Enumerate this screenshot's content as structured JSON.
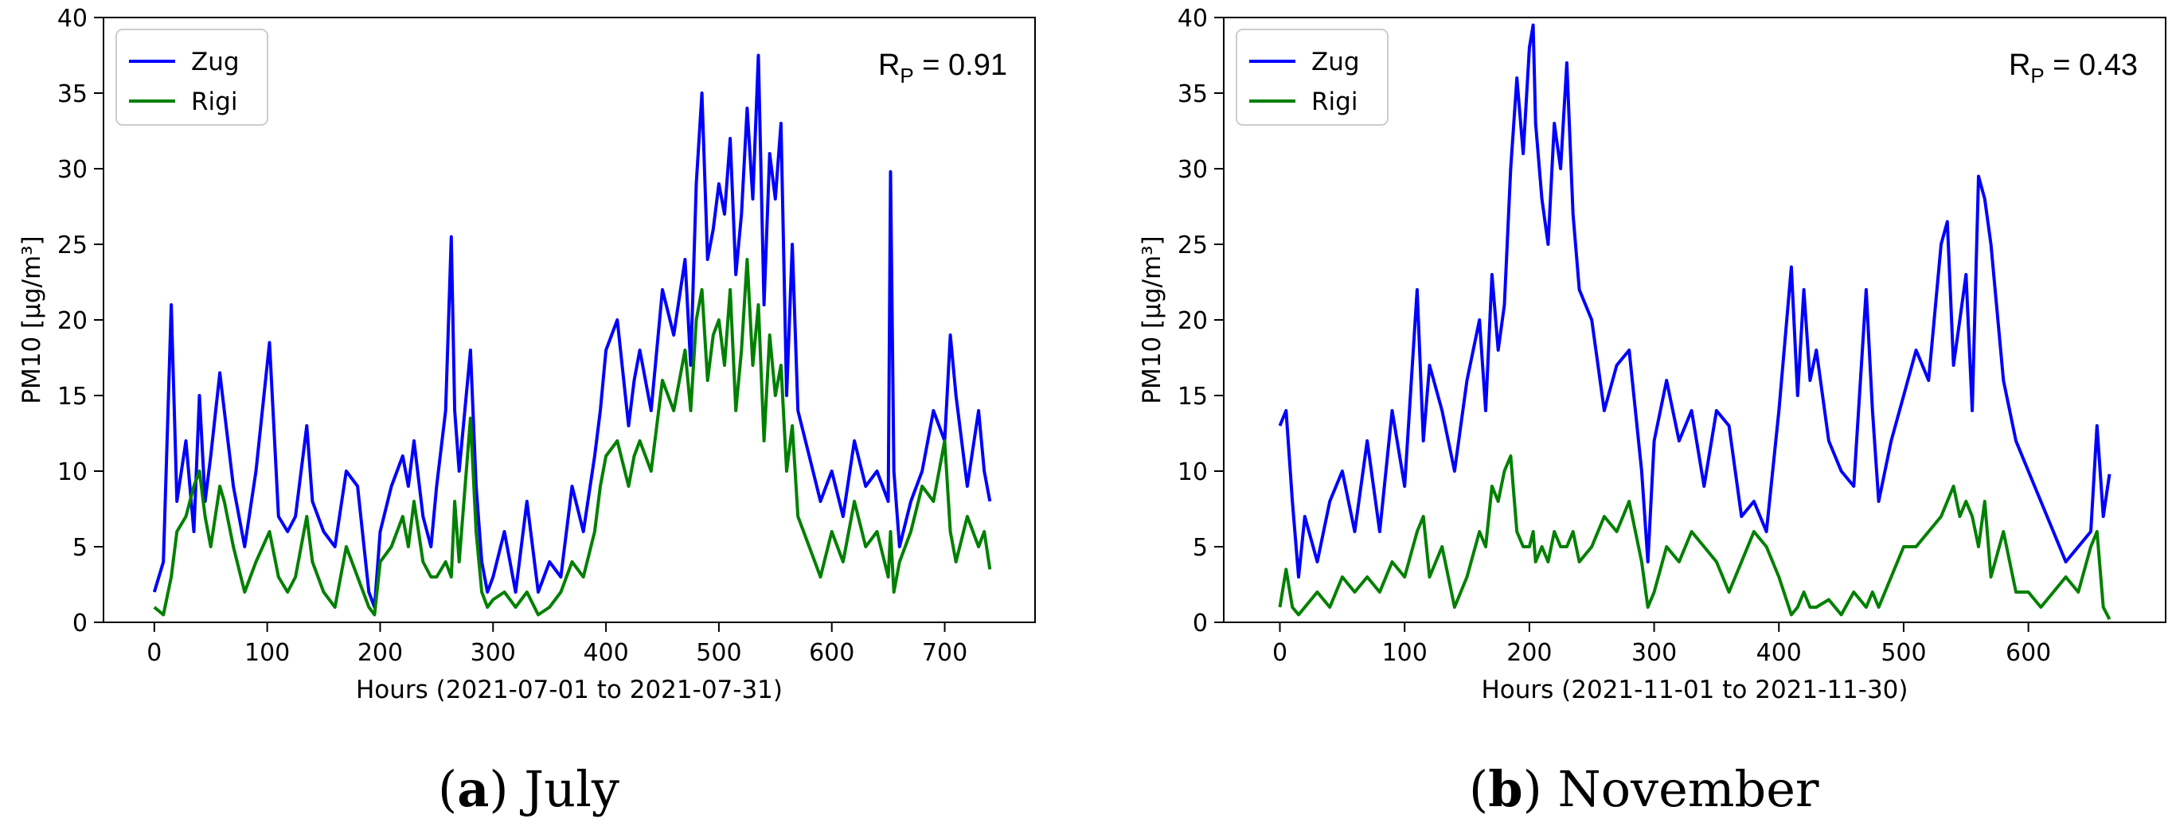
{
  "chart_data": [
    {
      "type": "line",
      "xlabel": "Hours (2021-07-01 to 2021-07-31)",
      "ylabel": "PM10 [µg/m³]",
      "xlim": [
        -45,
        780
      ],
      "ylim": [
        0,
        40
      ],
      "xticks": [
        0,
        100,
        200,
        300,
        400,
        500,
        600,
        700
      ],
      "yticks": [
        0,
        5,
        10,
        15,
        20,
        25,
        30,
        35,
        40
      ],
      "legend": {
        "location": "top-left",
        "entries": [
          "Zug",
          "Rigi"
        ]
      },
      "annotation": {
        "prefix": "R",
        "sub": "P",
        "text": " = 0.91"
      },
      "caption": {
        "label": "a",
        "text": "July"
      },
      "series": [
        {
          "name": "Zug",
          "color": "#0000ff",
          "x": [
            0,
            8,
            15,
            20,
            28,
            35,
            40,
            45,
            50,
            58,
            62,
            70,
            80,
            90,
            102,
            110,
            118,
            125,
            135,
            140,
            150,
            160,
            170,
            180,
            190,
            195,
            200,
            210,
            220,
            225,
            230,
            238,
            245,
            250,
            258,
            263,
            266,
            270,
            280,
            285,
            290,
            295,
            300,
            310,
            320,
            330,
            340,
            350,
            360,
            370,
            380,
            390,
            395,
            400,
            410,
            420,
            425,
            430,
            440,
            450,
            460,
            470,
            475,
            480,
            485,
            490,
            495,
            500,
            505,
            510,
            515,
            520,
            525,
            530,
            535,
            540,
            545,
            550,
            555,
            560,
            565,
            570,
            580,
            590,
            600,
            610,
            620,
            630,
            640,
            650,
            652,
            655,
            660,
            670,
            680,
            690,
            700,
            705,
            710,
            720,
            730,
            735,
            740
          ],
          "y": [
            2,
            4,
            21,
            8,
            12,
            6,
            15,
            8,
            11,
            16.5,
            14,
            9,
            5,
            10,
            18.5,
            7,
            6,
            7,
            13,
            8,
            6,
            5,
            10,
            9,
            2,
            1,
            6,
            9,
            11,
            9,
            12,
            7,
            5,
            9,
            14,
            25.5,
            14,
            10,
            18,
            9,
            4,
            2,
            3,
            6,
            2,
            8,
            2,
            4,
            3,
            9,
            6,
            11,
            14,
            18,
            20,
            13,
            16,
            18,
            14,
            22,
            19,
            24,
            17,
            29,
            35,
            24,
            26,
            29,
            27,
            32,
            23,
            27,
            34,
            28,
            37.5,
            21,
            31,
            28,
            33,
            15,
            25,
            14,
            11,
            8,
            10,
            7,
            12,
            9,
            10,
            8,
            29.8,
            10,
            5,
            8,
            10,
            14,
            12,
            19,
            15,
            9,
            14,
            10,
            8
          ]
        },
        {
          "name": "Rigi",
          "color": "#008000",
          "x": [
            0,
            8,
            15,
            20,
            28,
            35,
            40,
            45,
            50,
            58,
            62,
            70,
            80,
            90,
            102,
            110,
            118,
            125,
            135,
            140,
            150,
            160,
            170,
            180,
            190,
            195,
            200,
            210,
            220,
            225,
            230,
            238,
            245,
            250,
            258,
            263,
            266,
            270,
            280,
            285,
            290,
            295,
            300,
            310,
            320,
            330,
            340,
            350,
            360,
            370,
            380,
            390,
            395,
            400,
            410,
            420,
            425,
            430,
            440,
            450,
            460,
            470,
            475,
            480,
            485,
            490,
            495,
            500,
            505,
            510,
            515,
            520,
            525,
            530,
            535,
            540,
            545,
            550,
            555,
            560,
            565,
            570,
            580,
            590,
            600,
            610,
            620,
            630,
            640,
            650,
            652,
            655,
            660,
            670,
            680,
            690,
            700,
            705,
            710,
            720,
            730,
            735,
            740
          ],
          "y": [
            1,
            0.5,
            3,
            6,
            7,
            9,
            10,
            7,
            5,
            9,
            8,
            5,
            2,
            4,
            6,
            3,
            2,
            3,
            7,
            4,
            2,
            1,
            5,
            3,
            1,
            0.5,
            4,
            5,
            7,
            5,
            8,
            4,
            3,
            3,
            4,
            3,
            8,
            4,
            13.5,
            6,
            2,
            1,
            1.5,
            2,
            1,
            2,
            0.5,
            1,
            2,
            4,
            3,
            6,
            9,
            11,
            12,
            9,
            11,
            12,
            10,
            16,
            14,
            18,
            14,
            20,
            22,
            16,
            19,
            20,
            17,
            22,
            14,
            18,
            24,
            17,
            21,
            12,
            19,
            15,
            17,
            10,
            13,
            7,
            5,
            3,
            6,
            4,
            8,
            5,
            6,
            3,
            6,
            2,
            4,
            6,
            9,
            8,
            12,
            6,
            4,
            7,
            5,
            6,
            3.5
          ]
        }
      ]
    },
    {
      "type": "line",
      "xlabel": "Hours (2021-11-01 to 2021-11-30)",
      "ylabel": "PM10 [µg/m³]",
      "xlim": [
        -45,
        710
      ],
      "ylim": [
        0,
        40
      ],
      "xticks": [
        0,
        100,
        200,
        300,
        400,
        500,
        600
      ],
      "yticks": [
        0,
        5,
        10,
        15,
        20,
        25,
        30,
        35,
        40
      ],
      "legend": {
        "location": "top-left",
        "entries": [
          "Zug",
          "Rigi"
        ]
      },
      "annotation": {
        "prefix": "R",
        "sub": "P",
        "text": " = 0.43"
      },
      "caption": {
        "label": "b",
        "text": "November"
      },
      "series": [
        {
          "name": "Zug",
          "color": "#0000ff",
          "x": [
            0,
            5,
            10,
            15,
            20,
            30,
            40,
            50,
            60,
            70,
            80,
            90,
            100,
            110,
            115,
            120,
            130,
            140,
            150,
            160,
            165,
            170,
            175,
            180,
            185,
            190,
            195,
            200,
            203,
            205,
            210,
            215,
            220,
            225,
            230,
            235,
            240,
            250,
            260,
            270,
            280,
            290,
            295,
            300,
            310,
            320,
            330,
            340,
            350,
            360,
            370,
            380,
            390,
            400,
            410,
            415,
            420,
            425,
            430,
            440,
            450,
            460,
            470,
            475,
            480,
            490,
            500,
            510,
            520,
            530,
            535,
            540,
            545,
            550,
            555,
            560,
            565,
            570,
            580,
            590,
            600,
            610,
            620,
            630,
            640,
            650,
            655,
            660,
            665
          ],
          "y": [
            13,
            14,
            8,
            3,
            7,
            4,
            8,
            10,
            6,
            12,
            6,
            14,
            9,
            22,
            12,
            17,
            14,
            10,
            16,
            20,
            14,
            23,
            18,
            21,
            30,
            36,
            31,
            38,
            39.5,
            33,
            28,
            25,
            33,
            30,
            37,
            27,
            22,
            20,
            14,
            17,
            18,
            10,
            4,
            12,
            16,
            12,
            14,
            9,
            14,
            13,
            7,
            8,
            6,
            14,
            23.5,
            15,
            22,
            16,
            18,
            12,
            10,
            9,
            22,
            14,
            8,
            12,
            15,
            18,
            16,
            25,
            26.5,
            17,
            20,
            23,
            14,
            29.5,
            28,
            25,
            16,
            12,
            10,
            8,
            6,
            4,
            5,
            6,
            13,
            7,
            9.8
          ]
        },
        {
          "name": "Rigi",
          "color": "#008000",
          "x": [
            0,
            5,
            10,
            15,
            20,
            30,
            40,
            50,
            60,
            70,
            80,
            90,
            100,
            110,
            115,
            120,
            130,
            140,
            150,
            160,
            165,
            170,
            175,
            180,
            185,
            190,
            195,
            200,
            203,
            205,
            210,
            215,
            220,
            225,
            230,
            235,
            240,
            250,
            260,
            270,
            280,
            290,
            295,
            300,
            310,
            320,
            330,
            340,
            350,
            360,
            370,
            380,
            390,
            400,
            410,
            415,
            420,
            425,
            430,
            440,
            450,
            460,
            470,
            475,
            480,
            490,
            500,
            510,
            520,
            530,
            535,
            540,
            545,
            550,
            555,
            560,
            565,
            570,
            580,
            590,
            600,
            610,
            620,
            630,
            640,
            650,
            655,
            660,
            665
          ],
          "y": [
            1,
            3.5,
            1,
            0.5,
            1,
            2,
            1,
            3,
            2,
            3,
            2,
            4,
            3,
            6,
            7,
            3,
            5,
            1,
            3,
            6,
            5,
            9,
            8,
            10,
            11,
            6,
            5,
            5,
            6,
            4,
            5,
            4,
            6,
            5,
            5,
            6,
            4,
            5,
            7,
            6,
            8,
            4,
            1,
            2,
            5,
            4,
            6,
            5,
            4,
            2,
            4,
            6,
            5,
            3,
            0.5,
            1,
            2,
            1,
            1,
            1.5,
            0.5,
            2,
            1,
            2,
            1,
            3,
            5,
            5,
            6,
            7,
            8,
            9,
            7,
            8,
            7,
            5,
            8,
            3,
            6,
            2,
            2,
            1,
            2,
            3,
            2,
            5,
            6,
            1,
            0.2
          ]
        }
      ]
    }
  ]
}
